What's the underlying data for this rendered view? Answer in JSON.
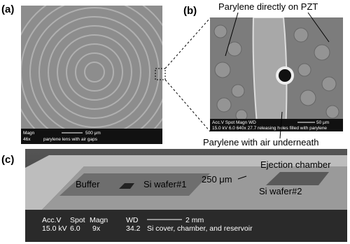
{
  "panel_a": {
    "label": "(a)",
    "info": {
      "magn_label": "Magn",
      "magn": "46x",
      "scale": "500 μm",
      "caption": "parylene lens with air gaps"
    }
  },
  "panel_b": {
    "label": "(b)",
    "annotations": [
      "Parylene directly on PZT",
      "Parylene with air underneath"
    ],
    "info": {
      "header": "Acc.V  Spot Magn     WD",
      "values": "15.0 kV  6.0  640x   27.7  releasing holes filled with parylene",
      "scale": "50 μm"
    }
  },
  "panel_c": {
    "label": "(c)",
    "annotations": [
      "Buffer",
      "Si wafer#1",
      "250 μm",
      "Ejection chamber",
      "Si wafer#2"
    ],
    "info": {
      "header": [
        "Acc.V",
        "Spot",
        "Magn",
        "WD"
      ],
      "values": [
        "15.0 kV",
        "6.0",
        "9x",
        "34.2"
      ],
      "scale": "2 mm",
      "caption": "Si cover, chamber, and reservoir"
    }
  }
}
